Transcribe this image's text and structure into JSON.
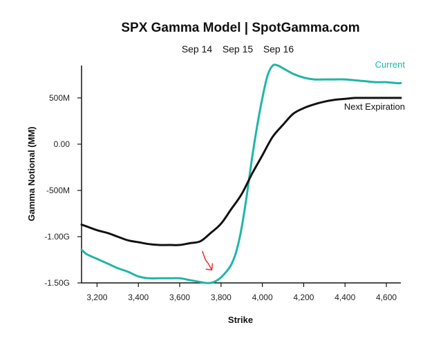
{
  "chart_data": {
    "type": "line",
    "title": "SPX Gamma Model | SpotGamma.com",
    "expirations": [
      {
        "label": "Sep 14",
        "color": "#111111",
        "active": false
      },
      {
        "label": "Sep 15",
        "color": "#111111",
        "active": false
      },
      {
        "label": "Sep 16",
        "color": "#1fb5a6",
        "active": true
      }
    ],
    "xlabel": "Strike",
    "ylabel": "Gamma Notional (MM)",
    "xlim": [
      3125,
      4670
    ],
    "ylim": [
      -1500,
      850
    ],
    "x_ticks": [
      3200,
      3400,
      3600,
      3800,
      4000,
      4200,
      4400,
      4600
    ],
    "x_tick_labels": [
      "3,200",
      "3,400",
      "3,600",
      "3,800",
      "4,000",
      "4,200",
      "4,400",
      "4,600"
    ],
    "y_ticks": [
      -1500,
      -1000,
      -500,
      0,
      500
    ],
    "y_tick_labels": [
      "-1.50G",
      "-1.00G",
      "-500M",
      "0.00",
      "500M"
    ],
    "series": [
      {
        "name": "Current",
        "color": "#1fb5a6",
        "x": [
          3125,
          3150,
          3200,
          3250,
          3300,
          3350,
          3400,
          3450,
          3500,
          3550,
          3600,
          3650,
          3700,
          3725,
          3750,
          3775,
          3800,
          3825,
          3850,
          3875,
          3900,
          3925,
          3950,
          3975,
          4000,
          4025,
          4050,
          4075,
          4100,
          4150,
          4200,
          4250,
          4300,
          4350,
          4400,
          4450,
          4500,
          4550,
          4600,
          4650,
          4670
        ],
        "y": [
          -1140,
          -1190,
          -1240,
          -1290,
          -1340,
          -1380,
          -1430,
          -1450,
          -1450,
          -1450,
          -1450,
          -1470,
          -1490,
          -1500,
          -1500,
          -1480,
          -1440,
          -1380,
          -1300,
          -1150,
          -900,
          -550,
          -150,
          200,
          500,
          740,
          850,
          850,
          820,
          760,
          720,
          700,
          700,
          700,
          700,
          690,
          680,
          670,
          670,
          660,
          660
        ]
      },
      {
        "name": "Next Expiration",
        "color": "#111111",
        "x": [
          3125,
          3150,
          3200,
          3250,
          3300,
          3350,
          3400,
          3450,
          3500,
          3550,
          3600,
          3650,
          3700,
          3750,
          3800,
          3850,
          3900,
          3950,
          4000,
          4050,
          4100,
          4150,
          4200,
          4250,
          4300,
          4350,
          4400,
          4450,
          4500,
          4550,
          4600,
          4650,
          4670
        ],
        "y": [
          -870,
          -890,
          -930,
          -960,
          -1000,
          -1040,
          -1060,
          -1080,
          -1090,
          -1090,
          -1090,
          -1070,
          -1050,
          -960,
          -860,
          -700,
          -540,
          -320,
          -120,
          80,
          210,
          330,
          390,
          430,
          460,
          480,
          490,
          500,
          500,
          500,
          500,
          500,
          500
        ]
      }
    ],
    "annotation": {
      "type": "hand-drawn-arrow",
      "color": "#e53935",
      "points": [
        [
          3710,
          -1160
        ],
        [
          3725,
          -1250
        ],
        [
          3738,
          -1290
        ],
        [
          3755,
          -1360
        ]
      ]
    }
  }
}
